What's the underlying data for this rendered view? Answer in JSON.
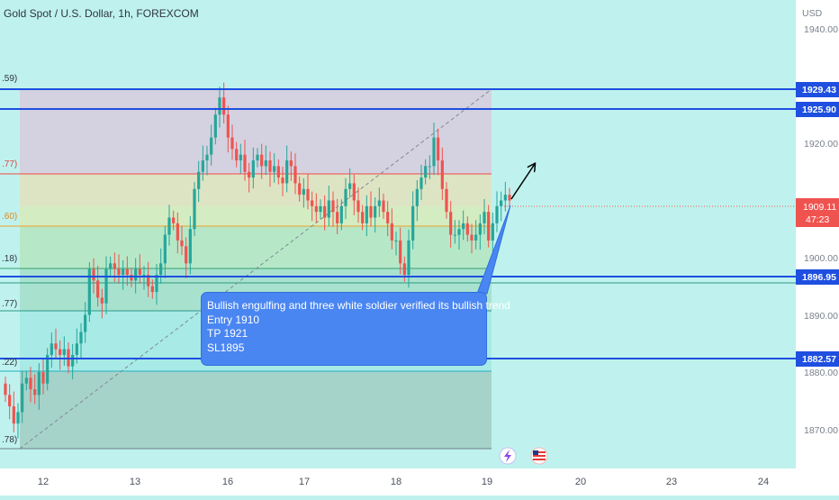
{
  "header": {
    "symbol_title": "Gold Spot / U.S. Dollar, 1h, FOREXCOM"
  },
  "price_axis": {
    "currency": "USD",
    "ticks": [
      "1940.00",
      "1920.00",
      "1900.00",
      "1890.00",
      "1880.00",
      "1870.00"
    ],
    "current_price": "1909.11",
    "countdown": "47:23"
  },
  "time_axis": {
    "ticks": [
      "12",
      "13",
      "16",
      "17",
      "18",
      "19",
      "20",
      "23",
      "24"
    ]
  },
  "levels": [
    {
      "price": "1929.43",
      "color": "#1e4fe0"
    },
    {
      "price": "1925.90",
      "color": "#1e4fe0"
    },
    {
      "price": "1896.95",
      "color": "#1e4fe0"
    },
    {
      "price": "1882.57",
      "color": "#1e4fe0"
    }
  ],
  "fib_labels": [
    ".59)",
    ".77)",
    ".60)",
    ".18)",
    ".77)",
    ".22)",
    ".78)"
  ],
  "callout": {
    "line1": "Bullish engulfing and three white soldier verified its bullish trend",
    "line2": "Entry 1910",
    "line3": "TP 1921",
    "line4": "SL1895"
  },
  "colors": {
    "background": "#bff2ee",
    "up_candle": "#26a69a",
    "down_candle": "#ef5350",
    "level_line": "#1e4fe0",
    "callout_bg": "#4a86f2"
  },
  "icons": [
    "lightning-icon",
    "us-flag-icon",
    "arrow-up-right-icon"
  ],
  "chart_data": {
    "type": "candlestick",
    "symbol": "Gold Spot / U.S. Dollar, 1h, FOREXCOM",
    "y_unit": "USD",
    "ylim": [
      1863,
      1945
    ],
    "x_labels": [
      "12",
      "13",
      "16",
      "17",
      "18",
      "19",
      "20",
      "23",
      "24"
    ],
    "levels": [
      1929.43,
      1925.9,
      1896.95,
      1882.57
    ],
    "last_price": 1909.11,
    "close": [
      1876,
      1874,
      1871,
      1873,
      1878,
      1879,
      1877,
      1876,
      1880,
      1878,
      1883,
      1885,
      1884,
      1883,
      1884,
      1881,
      1883,
      1885,
      1887,
      1890,
      1898,
      1896,
      1893,
      1892,
      1898,
      1899,
      1898,
      1897,
      1898,
      1897,
      1896,
      1898,
      1897,
      1897,
      1895,
      1894,
      1897,
      1899,
      1904,
      1907,
      1906,
      1903,
      1902,
      1899,
      1905,
      1912,
      1915,
      1917,
      1918,
      1921,
      1925,
      1928,
      1925,
      1921,
      1919,
      1917,
      1918,
      1915,
      1914,
      1917,
      1918,
      1916,
      1917,
      1915,
      1916,
      1914,
      1913,
      1917,
      1916,
      1913,
      1911,
      1912,
      1910,
      1909,
      1908,
      1909,
      1907,
      1910,
      1908,
      1906,
      1909,
      1912,
      1913,
      1910,
      1908,
      1906,
      1909,
      1907,
      1909,
      1910,
      1908,
      1906,
      1903,
      1903,
      1899,
      1897,
      1903,
      1909,
      1912,
      1914,
      1916,
      1916,
      1921,
      1917,
      1912,
      1908,
      1904,
      1904,
      1905,
      1906,
      1904,
      1903,
      1904,
      1906,
      1908,
      1903,
      1906,
      1909,
      1910,
      1911,
      1910
    ]
  }
}
